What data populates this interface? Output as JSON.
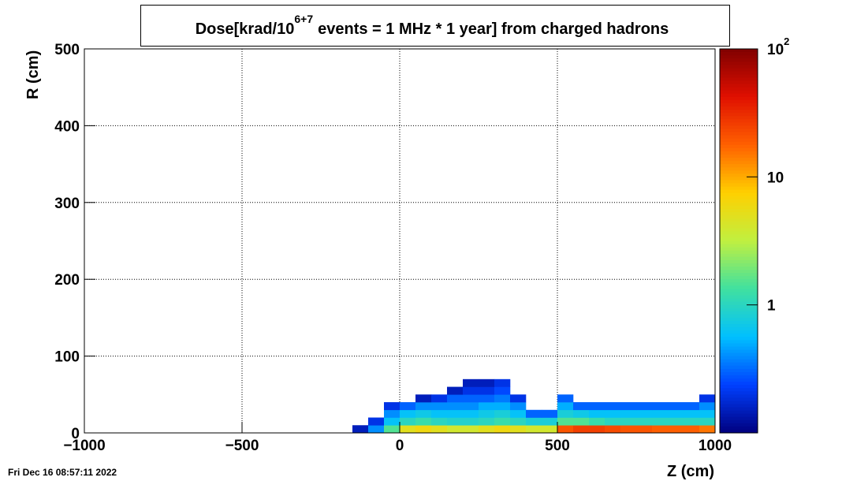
{
  "chart_data": {
    "type": "heatmap",
    "title": [
      "Dose[krad/10",
      "6+7",
      "events = 1 MHz * 1 year] from charged hadrons"
    ],
    "xlabel": "Z (cm)",
    "ylabel": "R (cm)",
    "timestamp": "Fri Dec 16 08:57:11 2022",
    "xlim": [
      -1000,
      1000
    ],
    "ylim": [
      0,
      500
    ],
    "xticks": [
      {
        "value": -1000,
        "label": "−1000"
      },
      {
        "value": -500,
        "label": "−500"
      },
      0,
      500,
      1000
    ],
    "yticks": [
      0,
      100,
      200,
      300,
      400,
      500
    ],
    "grid": true,
    "zlim": [
      0.1,
      100
    ],
    "zlog": true,
    "zticks": [
      1,
      10,
      {
        "value": 100,
        "label": "10",
        "exponent": "2"
      }
    ],
    "colormap": [
      "#00007f",
      "#0040ff",
      "#00c0ff",
      "#40e0a0",
      "#c0f040",
      "#ffd000",
      "#ff6000",
      "#e01000",
      "#800000"
    ],
    "xbins": [
      -150,
      -100,
      -50,
      0,
      50,
      100,
      150,
      200,
      250,
      300,
      350,
      400,
      450,
      500,
      550,
      600,
      650,
      700,
      750,
      800,
      850,
      900,
      950,
      1000
    ],
    "ybins": [
      0,
      10,
      20,
      30,
      40,
      50,
      60,
      70
    ],
    "values": [
      [
        0.15,
        0.4,
        1.5,
        5,
        6,
        5,
        4,
        4,
        5,
        6,
        5,
        4,
        4,
        20,
        25,
        25,
        22,
        20,
        20,
        18,
        18,
        18,
        15
      ],
      [
        null,
        0.2,
        0.6,
        1,
        1.2,
        1,
        0.9,
        0.9,
        1,
        1.2,
        1,
        0.8,
        0.8,
        1.5,
        1.5,
        1.2,
        1,
        1,
        1,
        1,
        1,
        1,
        1
      ],
      [
        null,
        null,
        0.4,
        0.6,
        0.7,
        0.6,
        0.6,
        0.6,
        0.7,
        0.8,
        0.6,
        0.3,
        0.3,
        0.8,
        0.7,
        0.6,
        0.6,
        0.6,
        0.6,
        0.6,
        0.6,
        0.6,
        0.6
      ],
      [
        null,
        null,
        0.2,
        0.3,
        0.4,
        0.4,
        0.4,
        0.4,
        0.5,
        0.5,
        0.4,
        null,
        null,
        0.5,
        0.3,
        0.3,
        0.3,
        0.3,
        0.3,
        0.3,
        0.3,
        0.3,
        0.4
      ],
      [
        null,
        null,
        null,
        null,
        0.15,
        0.2,
        0.3,
        0.3,
        0.3,
        0.35,
        0.2,
        null,
        null,
        0.3,
        null,
        null,
        null,
        null,
        null,
        null,
        null,
        null,
        0.2
      ],
      [
        null,
        null,
        null,
        null,
        null,
        null,
        0.15,
        0.2,
        0.2,
        0.25,
        null,
        null,
        null,
        null,
        null,
        null,
        null,
        null,
        null,
        null,
        null,
        null,
        null
      ],
      [
        null,
        null,
        null,
        null,
        null,
        null,
        null,
        0.15,
        0.15,
        0.2,
        null,
        null,
        null,
        null,
        null,
        null,
        null,
        null,
        null,
        null,
        null,
        null,
        null
      ]
    ]
  }
}
